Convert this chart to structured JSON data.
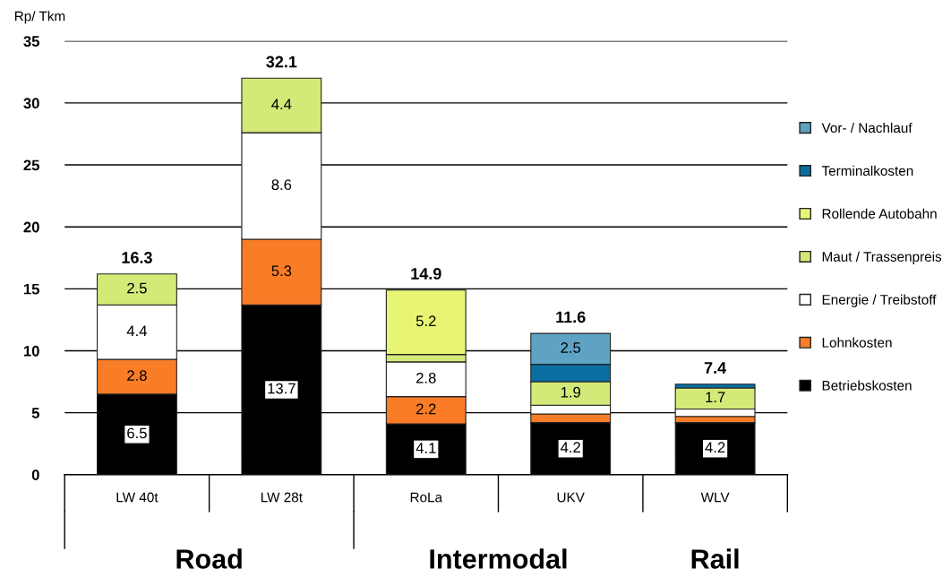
{
  "chart_data": {
    "type": "bar",
    "stacked": true,
    "ylabel": "Rp/ Tkm",
    "categories": [
      "LW 40t",
      "LW 28t",
      "RoLa",
      "UKV",
      "WLV"
    ],
    "series": [
      {
        "name": "Betriebskosten",
        "color": "#000000",
        "values": [
          6.5,
          13.7,
          4.1,
          4.2,
          4.2
        ],
        "value_labels": [
          "6.5",
          "13.7",
          "4.1",
          "4.2",
          "4.2"
        ]
      },
      {
        "name": "Lohnkosten",
        "color": "#f97c27",
        "values": [
          2.8,
          5.3,
          2.2,
          0.7,
          0.5
        ],
        "value_labels": [
          "2.8",
          "5.3",
          "2.2",
          null,
          null
        ]
      },
      {
        "name": "Energie / Treibstoff",
        "color": "#ffffff",
        "values": [
          4.4,
          8.6,
          2.8,
          0.7,
          0.6
        ],
        "value_labels": [
          "4.4",
          "8.6",
          "2.8",
          null,
          null
        ]
      },
      {
        "name": "Maut / Trassenpreis",
        "color": "#d4ea78",
        "values": [
          2.5,
          4.4,
          0.6,
          1.9,
          1.7
        ],
        "value_labels": [
          "2.5",
          "4.4",
          null,
          "1.9",
          "1.7"
        ]
      },
      {
        "name": "Rollende Autobahn",
        "color": "#e8f574",
        "values": [
          null,
          null,
          5.2,
          null,
          null
        ],
        "value_labels": [
          null,
          null,
          "5.2",
          null,
          null
        ]
      },
      {
        "name": "Terminalkosten",
        "color": "#0a6ea0",
        "values": [
          null,
          null,
          null,
          1.4,
          0.3
        ],
        "value_labels": [
          null,
          null,
          null,
          null,
          null
        ]
      },
      {
        "name": "Vor- / Nachlauf",
        "color": "#5fa3c4",
        "values": [
          null,
          null,
          null,
          2.5,
          null
        ],
        "value_labels": [
          null,
          null,
          null,
          "2.5",
          null
        ]
      }
    ],
    "totals": [
      "16.3",
      "32.1",
      "14.9",
      "11.6",
      "7.4"
    ],
    "ylim": [
      0,
      35
    ],
    "yticks": [
      0,
      5,
      10,
      15,
      20,
      25,
      30,
      35
    ],
    "grid": "y",
    "legend": "right",
    "annotations": [
      "Road",
      "Intermodal",
      "Rail"
    ]
  }
}
